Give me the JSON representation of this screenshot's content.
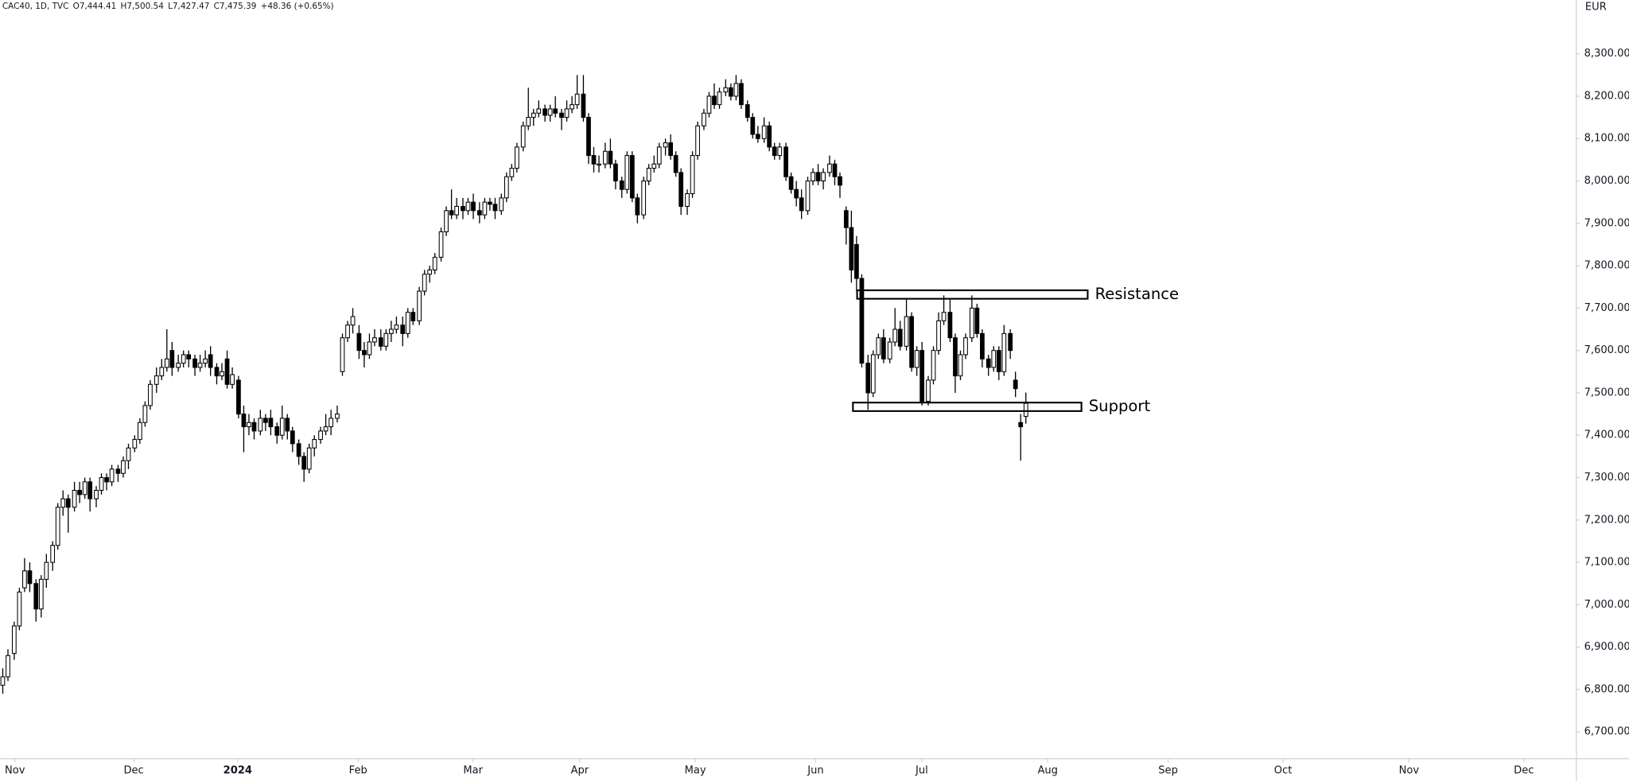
{
  "chart_data": {
    "type": "candlestick",
    "header": [
      "CAC40, 1D, TVC",
      "O7,444.41",
      "H7,500.54",
      "L7,427.47",
      "C7,475.39",
      "+48.36 (+0.65%)"
    ],
    "y_axis_label": "EUR",
    "up_color": "#ffffff",
    "down_color": "#000000",
    "outline_color": "#000000",
    "xlim": [
      -0.4,
      287.5
    ],
    "ylim": [
      6638,
      8427
    ],
    "xticks": [
      {
        "value": 2.3,
        "label": "Nov"
      },
      {
        "value": 24,
        "label": "Dec"
      },
      {
        "value": 43,
        "label": "2024"
      },
      {
        "value": 65,
        "label": "Feb"
      },
      {
        "value": 86,
        "label": "Mar"
      },
      {
        "value": 105.5,
        "label": "Apr"
      },
      {
        "value": 126.6,
        "label": "May"
      },
      {
        "value": 148.6,
        "label": "Jun"
      },
      {
        "value": 168,
        "label": "Jul"
      },
      {
        "value": 191,
        "label": "Aug"
      },
      {
        "value": 213,
        "label": "Sep"
      },
      {
        "value": 234,
        "label": "Oct"
      },
      {
        "value": 257,
        "label": "Nov"
      },
      {
        "value": 278,
        "label": "Dec"
      }
    ],
    "yticks": [
      {
        "value": 6700,
        "label": "6,700.00"
      },
      {
        "value": 6800,
        "label": "6,800.00"
      },
      {
        "value": 6900,
        "label": "6,900.00"
      },
      {
        "value": 7000,
        "label": "7,000.00"
      },
      {
        "value": 7100,
        "label": "7,100.00"
      },
      {
        "value": 7200,
        "label": "7,200.00"
      },
      {
        "value": 7300,
        "label": "7,300.00"
      },
      {
        "value": 7400,
        "label": "7,400.00"
      },
      {
        "value": 7500,
        "label": "7,500.00"
      },
      {
        "value": 7600,
        "label": "7,600.00"
      },
      {
        "value": 7700,
        "label": "7,700.00"
      },
      {
        "value": 7800,
        "label": "7,800.00"
      },
      {
        "value": 7900,
        "label": "7,900.00"
      },
      {
        "value": 8000,
        "label": "8,000.00"
      },
      {
        "value": 8100,
        "label": "8,100.00"
      },
      {
        "value": 8200,
        "label": "8,200.00"
      },
      {
        "value": 8300,
        "label": "8,300.00"
      }
    ],
    "annotations": [
      {
        "label": "Resistance",
        "y": [
          7722,
          7742
        ]
      },
      {
        "label": "Support",
        "y": [
          7457,
          7477
        ]
      }
    ],
    "values": [
      [
        6810,
        6850,
        6790,
        6830
      ],
      [
        6830,
        6895,
        6820,
        6880
      ],
      [
        6885,
        6960,
        6870,
        6950
      ],
      [
        6950,
        7040,
        6940,
        7030
      ],
      [
        7040,
        7110,
        7030,
        7080
      ],
      [
        7080,
        7100,
        7030,
        7050
      ],
      [
        7050,
        7060,
        6960,
        6990
      ],
      [
        6990,
        7070,
        6970,
        7060
      ],
      [
        7060,
        7120,
        7040,
        7100
      ],
      [
        7100,
        7150,
        7080,
        7140
      ],
      [
        7140,
        7240,
        7130,
        7230
      ],
      [
        7230,
        7270,
        7210,
        7250
      ],
      [
        7250,
        7260,
        7170,
        7230
      ],
      [
        7230,
        7290,
        7220,
        7270
      ],
      [
        7270,
        7290,
        7240,
        7260
      ],
      [
        7260,
        7300,
        7250,
        7290
      ],
      [
        7290,
        7300,
        7220,
        7250
      ],
      [
        7250,
        7280,
        7230,
        7270
      ],
      [
        7270,
        7310,
        7260,
        7300
      ],
      [
        7300,
        7310,
        7270,
        7290
      ],
      [
        7290,
        7330,
        7280,
        7320
      ],
      [
        7320,
        7330,
        7290,
        7310
      ],
      [
        7310,
        7350,
        7300,
        7340
      ],
      [
        7340,
        7380,
        7320,
        7370
      ],
      [
        7370,
        7400,
        7360,
        7390
      ],
      [
        7390,
        7440,
        7380,
        7430
      ],
      [
        7430,
        7480,
        7420,
        7470
      ],
      [
        7470,
        7530,
        7460,
        7520
      ],
      [
        7520,
        7560,
        7500,
        7540
      ],
      [
        7540,
        7580,
        7530,
        7560
      ],
      [
        7560,
        7650,
        7550,
        7580
      ],
      [
        7600,
        7620,
        7540,
        7560
      ],
      [
        7560,
        7590,
        7550,
        7570
      ],
      [
        7570,
        7600,
        7560,
        7590
      ],
      [
        7590,
        7600,
        7560,
        7580
      ],
      [
        7580,
        7590,
        7540,
        7560
      ],
      [
        7560,
        7590,
        7550,
        7570
      ],
      [
        7570,
        7600,
        7560,
        7580
      ],
      [
        7590,
        7610,
        7540,
        7560
      ],
      [
        7560,
        7570,
        7520,
        7540
      ],
      [
        7540,
        7570,
        7530,
        7550
      ],
      [
        7580,
        7600,
        7510,
        7520
      ],
      [
        7520,
        7560,
        7510,
        7543
      ],
      [
        7530,
        7540,
        7440,
        7450
      ],
      [
        7450,
        7470,
        7360,
        7420
      ],
      [
        7420,
        7450,
        7400,
        7430
      ],
      [
        7430,
        7440,
        7390,
        7410
      ],
      [
        7410,
        7460,
        7400,
        7440
      ],
      [
        7440,
        7450,
        7410,
        7430
      ],
      [
        7440,
        7460,
        7400,
        7420
      ],
      [
        7420,
        7430,
        7380,
        7400
      ],
      [
        7400,
        7470,
        7390,
        7440
      ],
      [
        7440,
        7450,
        7390,
        7410
      ],
      [
        7410,
        7420,
        7360,
        7380
      ],
      [
        7380,
        7390,
        7330,
        7350
      ],
      [
        7350,
        7360,
        7290,
        7320
      ],
      [
        7320,
        7380,
        7310,
        7370
      ],
      [
        7370,
        7400,
        7350,
        7390
      ],
      [
        7390,
        7420,
        7380,
        7410
      ],
      [
        7410,
        7450,
        7400,
        7420
      ],
      [
        7420,
        7460,
        7400,
        7440
      ],
      [
        7440,
        7470,
        7430,
        7450
      ],
      [
        7550,
        7640,
        7540,
        7630
      ],
      [
        7630,
        7670,
        7620,
        7660
      ],
      [
        7660,
        7700,
        7640,
        7680
      ],
      [
        7640,
        7660,
        7580,
        7600
      ],
      [
        7600,
        7620,
        7560,
        7590
      ],
      [
        7590,
        7640,
        7580,
        7620
      ],
      [
        7620,
        7650,
        7610,
        7630
      ],
      [
        7630,
        7650,
        7600,
        7610
      ],
      [
        7610,
        7650,
        7600,
        7640
      ],
      [
        7640,
        7670,
        7620,
        7650
      ],
      [
        7650,
        7680,
        7640,
        7660
      ],
      [
        7660,
        7680,
        7610,
        7640
      ],
      [
        7640,
        7700,
        7630,
        7690
      ],
      [
        7690,
        7700,
        7660,
        7670
      ],
      [
        7670,
        7750,
        7660,
        7740
      ],
      [
        7740,
        7790,
        7730,
        7780
      ],
      [
        7780,
        7800,
        7760,
        7790
      ],
      [
        7790,
        7830,
        7780,
        7820
      ],
      [
        7820,
        7890,
        7810,
        7880
      ],
      [
        7880,
        7940,
        7870,
        7930
      ],
      [
        7930,
        7980,
        7910,
        7920
      ],
      [
        7920,
        7960,
        7910,
        7940
      ],
      [
        7940,
        7960,
        7910,
        7930
      ],
      [
        7930,
        7960,
        7920,
        7950
      ],
      [
        7950,
        7970,
        7910,
        7930
      ],
      [
        7930,
        7950,
        7900,
        7920
      ],
      [
        7920,
        7960,
        7910,
        7950
      ],
      [
        7950,
        7960,
        7930,
        7945
      ],
      [
        7945,
        7960,
        7910,
        7930
      ],
      [
        7930,
        7970,
        7920,
        7960
      ],
      [
        7960,
        8020,
        7950,
        8010
      ],
      [
        8010,
        8040,
        8000,
        8030
      ],
      [
        8030,
        8090,
        8020,
        8080
      ],
      [
        8080,
        8140,
        8070,
        8130
      ],
      [
        8130,
        8220,
        8120,
        8150
      ],
      [
        8150,
        8170,
        8130,
        8160
      ],
      [
        8160,
        8190,
        8150,
        8170
      ],
      [
        8170,
        8180,
        8140,
        8155
      ],
      [
        8155,
        8180,
        8140,
        8170
      ],
      [
        8170,
        8200,
        8150,
        8160
      ],
      [
        8160,
        8170,
        8120,
        8150
      ],
      [
        8150,
        8190,
        8140,
        8170
      ],
      [
        8170,
        8200,
        8160,
        8180
      ],
      [
        8180,
        8250,
        8170,
        8205
      ],
      [
        8205,
        8250,
        8140,
        8150
      ],
      [
        8150,
        8160,
        8040,
        8060
      ],
      [
        8060,
        8080,
        8020,
        8040
      ],
      [
        8040,
        8060,
        8020,
        8040
      ],
      [
        8040,
        8090,
        8030,
        8070
      ],
      [
        8070,
        8100,
        8030,
        8040
      ],
      [
        8040,
        8050,
        7980,
        8000
      ],
      [
        8000,
        8010,
        7960,
        7980
      ],
      [
        7980,
        8070,
        7970,
        8060
      ],
      [
        8060,
        8070,
        7950,
        7960
      ],
      [
        7960,
        7970,
        7900,
        7920
      ],
      [
        7920,
        8010,
        7910,
        8000
      ],
      [
        8000,
        8040,
        7990,
        8030
      ],
      [
        8030,
        8060,
        8020,
        8040
      ],
      [
        8040,
        8090,
        8030,
        8080
      ],
      [
        8080,
        8100,
        8060,
        8090
      ],
      [
        8090,
        8110,
        8050,
        8060
      ],
      [
        8060,
        8070,
        8010,
        8020
      ],
      [
        8020,
        8030,
        7920,
        7940
      ],
      [
        7940,
        7980,
        7920,
        7970
      ],
      [
        7970,
        8070,
        7960,
        8060
      ],
      [
        8060,
        8140,
        8050,
        8130
      ],
      [
        8130,
        8170,
        8120,
        8160
      ],
      [
        8160,
        8210,
        8150,
        8200
      ],
      [
        8200,
        8230,
        8170,
        8180
      ],
      [
        8180,
        8220,
        8170,
        8210
      ],
      [
        8210,
        8240,
        8200,
        8220
      ],
      [
        8220,
        8230,
        8190,
        8200
      ],
      [
        8200,
        8250,
        8190,
        8230
      ],
      [
        8230,
        8240,
        8170,
        8180
      ],
      [
        8180,
        8190,
        8140,
        8150
      ],
      [
        8150,
        8160,
        8100,
        8110
      ],
      [
        8110,
        8130,
        8090,
        8100
      ],
      [
        8100,
        8150,
        8090,
        8130
      ],
      [
        8130,
        8140,
        8070,
        8080
      ],
      [
        8080,
        8090,
        8050,
        8060
      ],
      [
        8060,
        8090,
        8050,
        8080
      ],
      [
        8080,
        8090,
        8000,
        8010
      ],
      [
        8010,
        8020,
        7970,
        7980
      ],
      [
        7980,
        8000,
        7940,
        7960
      ],
      [
        7960,
        7980,
        7910,
        7930
      ],
      [
        7930,
        8010,
        7920,
        8000
      ],
      [
        8000,
        8030,
        7990,
        8020
      ],
      [
        8020,
        8040,
        7990,
        8000
      ],
      [
        8000,
        8030,
        7980,
        8020
      ],
      [
        8020,
        8060,
        8010,
        8040
      ],
      [
        8040,
        8050,
        7990,
        8010
      ],
      [
        8010,
        8020,
        7960,
        7990
      ],
      [
        7930,
        7940,
        7850,
        7890
      ],
      [
        7890,
        7930,
        7760,
        7790
      ],
      [
        7850,
        7870,
        7740,
        7770
      ],
      [
        7770,
        7780,
        7560,
        7570
      ],
      [
        7570,
        7590,
        7460,
        7500
      ],
      [
        7500,
        7600,
        7490,
        7590
      ],
      [
        7590,
        7640,
        7580,
        7630
      ],
      [
        7630,
        7650,
        7570,
        7580
      ],
      [
        7580,
        7630,
        7570,
        7620
      ],
      [
        7620,
        7700,
        7610,
        7650
      ],
      [
        7650,
        7670,
        7600,
        7610
      ],
      [
        7610,
        7720,
        7600,
        7680
      ],
      [
        7680,
        7690,
        7550,
        7560
      ],
      [
        7560,
        7610,
        7540,
        7600
      ],
      [
        7600,
        7620,
        7470,
        7480
      ],
      [
        7480,
        7540,
        7470,
        7530
      ],
      [
        7530,
        7610,
        7520,
        7600
      ],
      [
        7600,
        7690,
        7590,
        7670
      ],
      [
        7670,
        7730,
        7660,
        7690
      ],
      [
        7690,
        7720,
        7620,
        7630
      ],
      [
        7630,
        7640,
        7500,
        7540
      ],
      [
        7540,
        7600,
        7530,
        7590
      ],
      [
        7590,
        7640,
        7580,
        7630
      ],
      [
        7630,
        7730,
        7620,
        7700
      ],
      [
        7700,
        7710,
        7630,
        7640
      ],
      [
        7640,
        7650,
        7560,
        7580
      ],
      [
        7580,
        7590,
        7540,
        7560
      ],
      [
        7560,
        7610,
        7550,
        7600
      ],
      [
        7600,
        7610,
        7530,
        7550
      ],
      [
        7550,
        7660,
        7540,
        7640
      ],
      [
        7640,
        7650,
        7580,
        7600
      ],
      [
        7530,
        7550,
        7490,
        7510
      ],
      [
        7430,
        7450,
        7340,
        7420
      ],
      [
        7444.41,
        7500.54,
        7427.47,
        7475.39
      ]
    ]
  }
}
